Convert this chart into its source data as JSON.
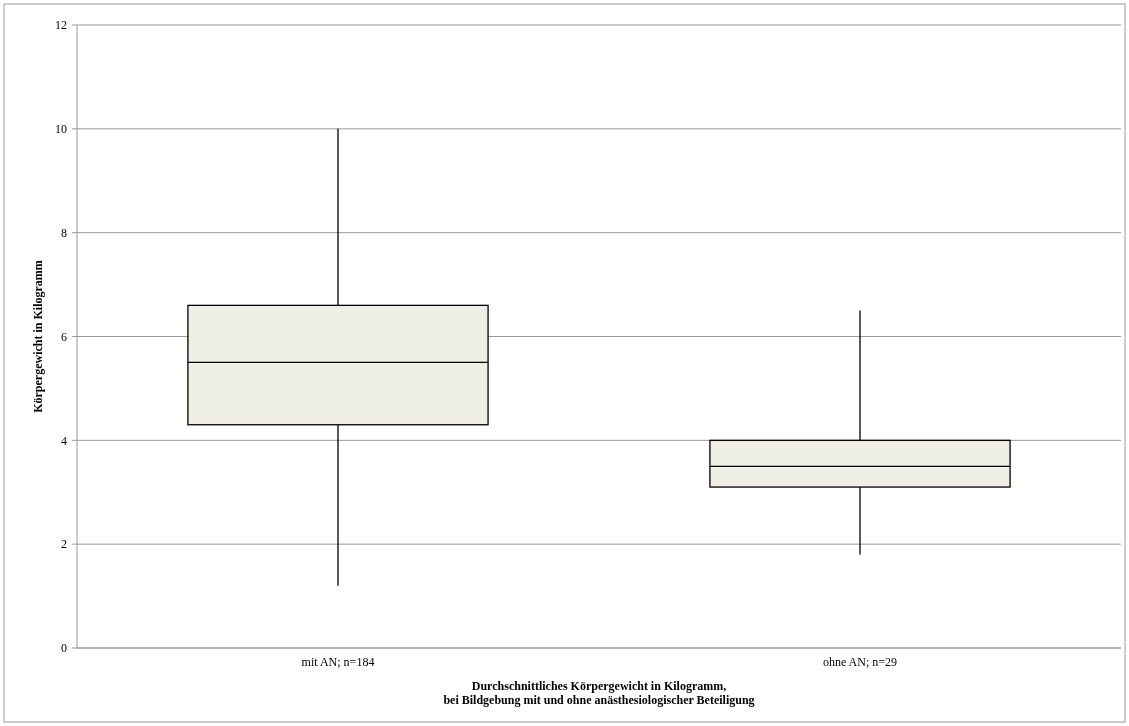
{
  "chart_data": {
    "type": "box",
    "categories": [
      "mit AN; n=184",
      "ohne AN; n=29"
    ],
    "series": [
      {
        "color": "#efefe6",
        "boxes": [
          {
            "low": 1.2,
            "q1": 4.3,
            "median": 5.5,
            "q3": 6.6,
            "high": 10
          },
          {
            "low": 1.8,
            "q1": 3.1,
            "median": 3.5,
            "q3": 4.0,
            "high": 6.5
          }
        ]
      }
    ],
    "xlabel": "Durchschnittliches Körpergewicht in Kilogramm,\nbei Bildgebung mit und ohne anästhesiologischer Beteiligung",
    "ylabel": "Körpergewicht in Kilogramm",
    "ylim": [
      0,
      12
    ],
    "yticks": [
      0,
      2,
      4,
      6,
      8,
      10,
      12
    ],
    "grid": "y"
  }
}
